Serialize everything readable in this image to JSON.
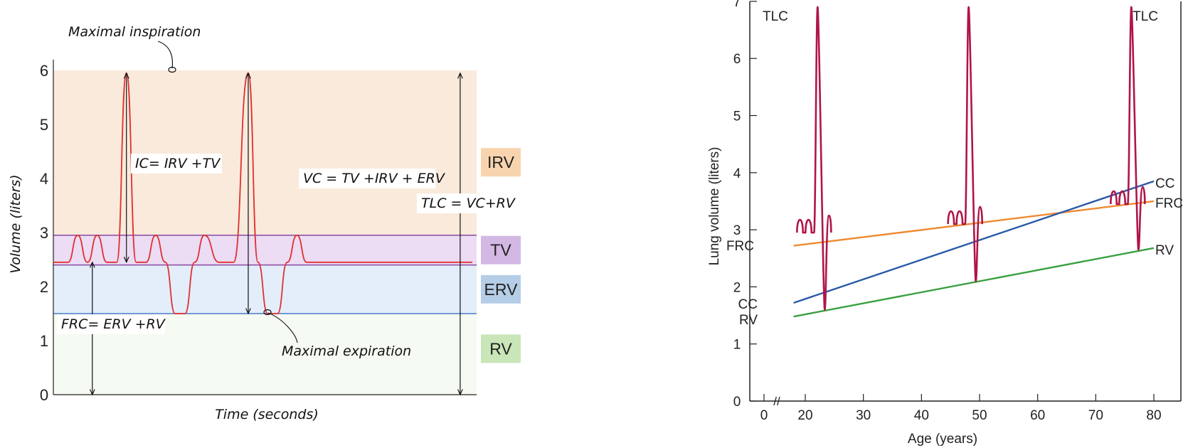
{
  "chart_data": [
    {
      "type": "line",
      "title": "",
      "xlabel": "Time (seconds)",
      "ylabel": "Volume (liters)",
      "ylim": [
        0,
        6.2
      ],
      "yticks": [
        "0",
        "1",
        "2",
        "3",
        "4",
        "5",
        "6"
      ],
      "zones": [
        {
          "name": "RV",
          "from": 0,
          "to": 1.5,
          "color": "#f5faf2",
          "label_bg": "#c8e6b8"
        },
        {
          "name": "ERV",
          "from": 1.5,
          "to": 2.4,
          "color": "#e3eefa",
          "label_bg": "#b5cde6"
        },
        {
          "name": "TV",
          "from": 2.4,
          "to": 2.95,
          "color": "#ecdcf4",
          "label_bg": "#d3b8e3"
        },
        {
          "name": "IRV",
          "from": 2.95,
          "to": 6.0,
          "color": "#faeadb",
          "label_bg": "#f8d4ae"
        }
      ],
      "zone_border_colors": {
        "tv_edges": "#8a4aa0",
        "erv_bottom": "#4a7ac8"
      },
      "trace_color": "#e03030",
      "series": [
        {
          "name": "spirometer trace",
          "x": [
            0,
            3,
            5,
            7,
            9,
            11,
            13,
            15,
            17,
            19,
            21,
            23,
            25,
            27,
            29,
            31,
            34,
            37,
            40,
            42,
            44,
            46,
            48,
            50,
            52,
            54,
            56,
            58,
            60,
            62,
            64,
            67,
            70,
            72,
            74,
            76,
            78,
            80,
            82,
            84,
            86
          ],
          "y": [
            2.45,
            2.45,
            2.95,
            2.45,
            2.95,
            2.45,
            2.45,
            5.95,
            2.45,
            2.45,
            2.95,
            2.45,
            1.5,
            1.5,
            2.45,
            2.95,
            2.45,
            2.45,
            5.95,
            2.45,
            1.5,
            1.5,
            2.45,
            2.95,
            2.45,
            2.45,
            2.45,
            2.45,
            2.45,
            2.45,
            2.45,
            2.45,
            2.45,
            2.45,
            2.45,
            2.45,
            2.45,
            2.45,
            2.45,
            2.45,
            2.45
          ]
        }
      ],
      "annotations": {
        "max_insp": "Maximal inspiration",
        "max_exp": "Maximal expiration",
        "ic": "IC= IRV +TV",
        "vc": "VC = TV +IRV + ERV",
        "tlc": "TLC = VC+RV",
        "frc": "FRC= ERV +RV"
      }
    },
    {
      "type": "line",
      "title": "",
      "xlabel": "Age (years)",
      "ylabel": "Lung volume (liters)",
      "xlim": [
        -5,
        85
      ],
      "ylim": [
        0,
        7
      ],
      "xticks": [
        "0",
        "20",
        "30",
        "40",
        "50",
        "60",
        "70",
        "80"
      ],
      "yticks": [
        "0",
        "1",
        "2",
        "3",
        "4",
        "5",
        "6",
        "7"
      ],
      "axis_break": "//",
      "series": [
        {
          "name": "FRC",
          "color": "#f08a30",
          "x": [
            18,
            80
          ],
          "y": [
            2.72,
            3.5
          ],
          "label_left": "FRC",
          "label_right": "FRC"
        },
        {
          "name": "CC",
          "color": "#2a5aa8",
          "x": [
            18,
            80
          ],
          "y": [
            1.72,
            3.85
          ],
          "label_left": "CC",
          "label_right": "CC"
        },
        {
          "name": "RV",
          "color": "#3aa040",
          "x": [
            18,
            80
          ],
          "y": [
            1.48,
            2.68
          ],
          "label_left": "RV",
          "label_right": "RV"
        }
      ],
      "spirogram_color": "#b0154a",
      "spirograms": [
        {
          "age": 22,
          "tlc": 6.9,
          "rv": 1.6,
          "frc": 2.95
        },
        {
          "age": 48,
          "tlc": 6.9,
          "rv": 2.1,
          "frc": 3.1
        },
        {
          "age": 76,
          "tlc": 6.9,
          "rv": 2.65,
          "frc": 3.45
        }
      ],
      "corner_labels": {
        "left": "TLC",
        "right": "TLC"
      }
    }
  ]
}
